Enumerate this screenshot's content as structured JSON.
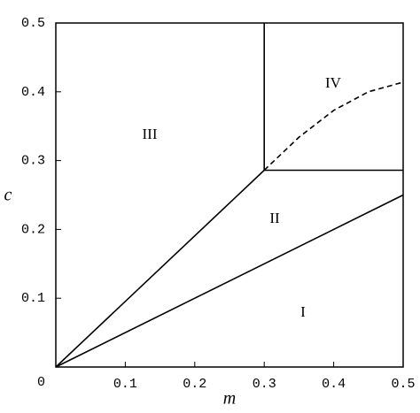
{
  "chart_data": {
    "type": "line",
    "xlabel": "m",
    "ylabel": "c",
    "xlim": [
      0,
      0.5
    ],
    "ylim": [
      0,
      0.5
    ],
    "xticks": [
      0.1,
      0.2,
      0.3,
      0.4,
      0.5
    ],
    "yticks": [
      0,
      0.1,
      0.2,
      0.3,
      0.4,
      0.5
    ],
    "series": [
      {
        "color": "#000000",
        "dashed": false,
        "x": [
          0,
          0.5
        ],
        "values": [
          0,
          0.25
        ]
      },
      {
        "color": "#000000",
        "dashed": false,
        "x": [
          0,
          0.3
        ],
        "values": [
          0,
          0.286
        ]
      },
      {
        "color": "#000000",
        "dashed": false,
        "x": [
          0.3,
          0.5
        ],
        "values": [
          0.286,
          0.286
        ]
      },
      {
        "color": "#000000",
        "dashed": false,
        "x": [
          0.3,
          0.3
        ],
        "values": [
          0.286,
          0.5
        ]
      },
      {
        "color": "#000000",
        "dashed": true,
        "x": [
          0.3,
          0.35,
          0.4,
          0.45,
          0.5
        ],
        "values": [
          0.286,
          0.334,
          0.373,
          0.4,
          0.414
        ]
      }
    ],
    "annotations": [
      "I",
      "II",
      "III",
      "IV"
    ]
  }
}
